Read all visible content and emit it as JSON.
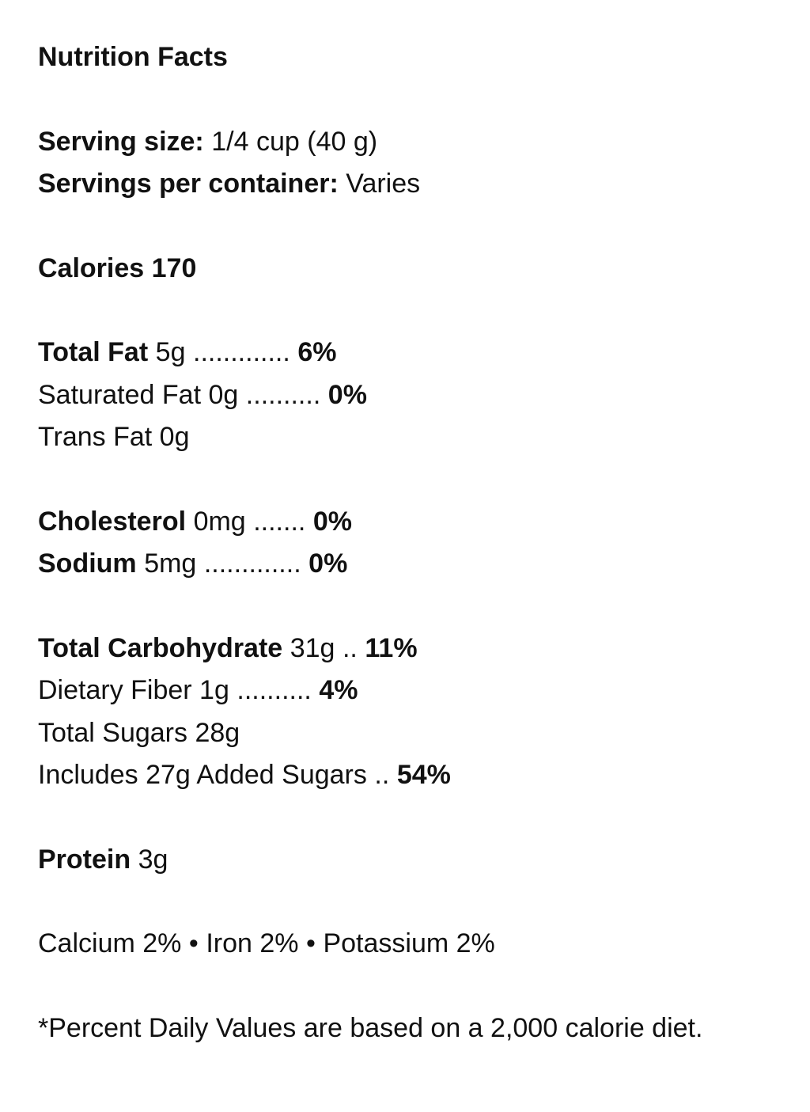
{
  "blocks": [
    {
      "lines": [
        {
          "parts": [
            {
              "text": "Nutrition Facts",
              "bold": true
            }
          ]
        }
      ]
    },
    {
      "lines": [
        {
          "parts": [
            {
              "text": "Serving size:",
              "bold": true
            },
            {
              "text": "1/4 cup (40 g)",
              "bold": false
            }
          ]
        },
        {
          "parts": [
            {
              "text": "Servings per container:",
              "bold": true
            },
            {
              "text": "Varies",
              "bold": false
            }
          ]
        }
      ]
    },
    {
      "lines": [
        {
          "parts": [
            {
              "text": "Calories 170",
              "bold": true
            }
          ]
        }
      ]
    },
    {
      "lines": [
        {
          "parts": [
            {
              "text": "Total Fat",
              "bold": true
            },
            {
              "text": "5g",
              "bold": false
            },
            {
              "text": ".............",
              "bold": false
            },
            {
              "text": "6%",
              "bold": true
            }
          ]
        },
        {
          "parts": [
            {
              "text": "Saturated Fat 0g",
              "bold": false
            },
            {
              "text": "..........",
              "bold": false
            },
            {
              "text": "0%",
              "bold": true
            }
          ]
        },
        {
          "parts": [
            {
              "text": "Trans Fat 0g",
              "bold": false
            }
          ]
        }
      ]
    },
    {
      "lines": [
        {
          "parts": [
            {
              "text": "Cholesterol",
              "bold": true
            },
            {
              "text": "0mg",
              "bold": false
            },
            {
              "text": ".......",
              "bold": false
            },
            {
              "text": "0%",
              "bold": true
            }
          ]
        },
        {
          "parts": [
            {
              "text": "Sodium",
              "bold": true
            },
            {
              "text": "5mg",
              "bold": false
            },
            {
              "text": ".............",
              "bold": false
            },
            {
              "text": "0%",
              "bold": true
            }
          ]
        }
      ]
    },
    {
      "lines": [
        {
          "parts": [
            {
              "text": "Total Carbohydrate",
              "bold": true
            },
            {
              "text": "31g",
              "bold": false
            },
            {
              "text": "..",
              "bold": false
            },
            {
              "text": "11%",
              "bold": true
            }
          ]
        },
        {
          "parts": [
            {
              "text": "Dietary Fiber 1g",
              "bold": false
            },
            {
              "text": "..........",
              "bold": false
            },
            {
              "text": "4%",
              "bold": true
            }
          ]
        },
        {
          "parts": [
            {
              "text": "Total Sugars 28g",
              "bold": false
            }
          ]
        },
        {
          "parts": [
            {
              "text": "Includes 27g Added Sugars",
              "bold": false
            },
            {
              "text": "..",
              "bold": false
            },
            {
              "text": "54%",
              "bold": true
            }
          ]
        }
      ]
    },
    {
      "lines": [
        {
          "parts": [
            {
              "text": "Protein",
              "bold": true
            },
            {
              "text": "3g",
              "bold": false
            }
          ]
        }
      ]
    },
    {
      "lines": [
        {
          "parts": [
            {
              "text": "Calcium 2%",
              "bold": false
            },
            {
              "text": "•",
              "bold": false
            },
            {
              "text": "Iron 2%",
              "bold": false
            },
            {
              "text": "•",
              "bold": false
            },
            {
              "text": "Potassium 2%",
              "bold": false
            }
          ]
        }
      ]
    },
    {
      "lines": [
        {
          "parts": [
            {
              "text": "*Percent Daily Values are based on a 2,000 calorie diet.",
              "bold": false
            }
          ]
        }
      ]
    }
  ]
}
